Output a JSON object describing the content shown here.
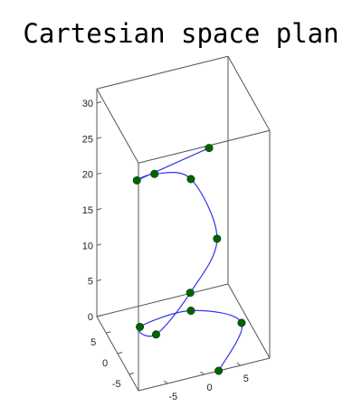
{
  "chart_data": {
    "type": "line",
    "title": "Cartesian space plan",
    "xlabel": "",
    "ylabel": "",
    "zlabel": "",
    "xlim": [
      -9,
      9
    ],
    "ylim": [
      -9,
      9
    ],
    "zlim": [
      0,
      32
    ],
    "grid": false,
    "x_ticks": [
      "5",
      "0",
      "-5"
    ],
    "y_ticks": [
      "5",
      "0",
      "-5"
    ],
    "z_ticks": [
      "0",
      "5",
      "10",
      "15",
      "20",
      "25",
      "30"
    ],
    "series": [
      {
        "color": "#3333ee",
        "marker_color": "#006400",
        "points": [
          {
            "x": 2,
            "y": -9,
            "z": 0
          },
          {
            "x": 8,
            "y": 0,
            "z": 0
          },
          {
            "x": 2,
            "y": 3,
            "z": 1.5
          },
          {
            "x": -5,
            "y": 3,
            "z": 1
          },
          {
            "x": -5,
            "y": -4,
            "z": 4
          },
          {
            "x": 0,
            "y": -3,
            "z": 8
          },
          {
            "x": 4,
            "y": -2,
            "z": 14
          },
          {
            "x": 2,
            "y": 3,
            "z": 20
          },
          {
            "x": -3,
            "y": 3,
            "z": 22
          },
          {
            "x": -7,
            "y": -2,
            "z": 25
          },
          {
            "x": 1,
            "y": -8,
            "z": 31
          }
        ]
      }
    ]
  }
}
